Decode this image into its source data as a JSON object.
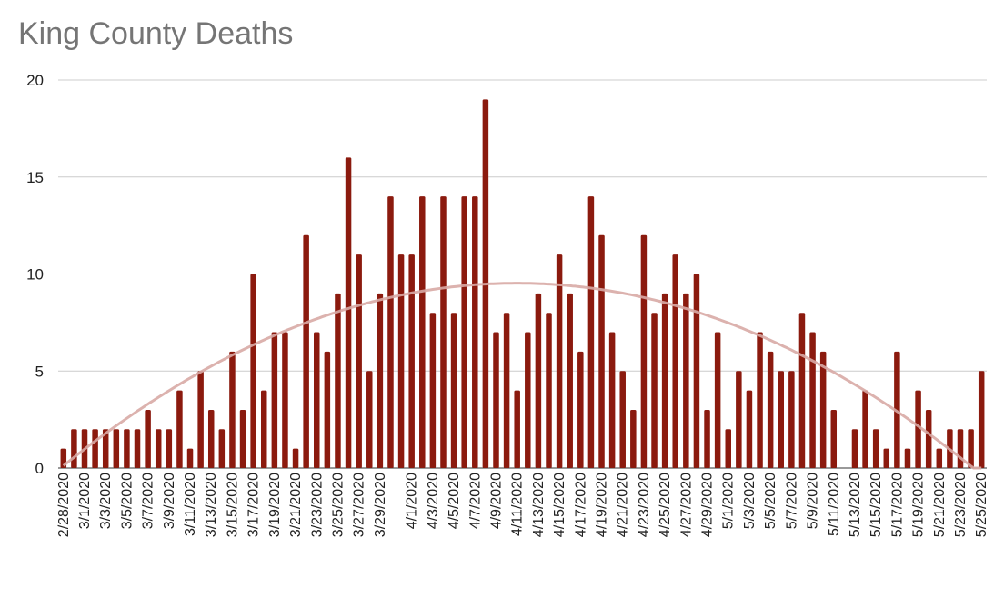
{
  "title": "King County Deaths",
  "colors": {
    "bar": "#8b1a0e",
    "trendline": "#d8aaa5",
    "gridline": "#cccccc",
    "title": "#757575"
  },
  "chart_data": {
    "type": "bar",
    "title": "King County Deaths",
    "xlabel": "",
    "ylabel": "",
    "ylim": [
      0,
      20
    ],
    "yticks": [
      0,
      5,
      10,
      15,
      20
    ],
    "grid": true,
    "trendline": "polynomial",
    "categories": [
      "2/28/2020",
      "2/29/2020",
      "3/1/2020",
      "3/2/2020",
      "3/3/2020",
      "3/4/2020",
      "3/5/2020",
      "3/6/2020",
      "3/7/2020",
      "3/8/2020",
      "3/9/2020",
      "3/10/2020",
      "3/11/2020",
      "3/12/2020",
      "3/13/2020",
      "3/14/2020",
      "3/15/2020",
      "3/16/2020",
      "3/17/2020",
      "3/18/2020",
      "3/19/2020",
      "3/20/2020",
      "3/21/2020",
      "3/22/2020",
      "3/23/2020",
      "3/24/2020",
      "3/25/2020",
      "3/26/2020",
      "3/27/2020",
      "3/28/2020",
      "3/29/2020",
      "3/30/2020",
      "3/31/2020",
      "4/1/2020",
      "4/2/2020",
      "4/3/2020",
      "4/4/2020",
      "4/5/2020",
      "4/6/2020",
      "4/7/2020",
      "4/8/2020",
      "4/9/2020",
      "4/10/2020",
      "4/11/2020",
      "4/12/2020",
      "4/13/2020",
      "4/14/2020",
      "4/15/2020",
      "4/16/2020",
      "4/17/2020",
      "4/18/2020",
      "4/19/2020",
      "4/20/2020",
      "4/21/2020",
      "4/22/2020",
      "4/23/2020",
      "4/24/2020",
      "4/25/2020",
      "4/26/2020",
      "4/27/2020",
      "4/28/2020",
      "4/29/2020",
      "4/30/2020",
      "5/1/2020",
      "5/2/2020",
      "5/3/2020",
      "5/4/2020",
      "5/5/2020",
      "5/6/2020",
      "5/7/2020",
      "5/8/2020",
      "5/9/2020",
      "5/10/2020",
      "5/11/2020",
      "5/12/2020",
      "5/13/2020",
      "5/14/2020",
      "5/15/2020",
      "5/16/2020",
      "5/17/2020",
      "5/18/2020",
      "5/19/2020",
      "5/20/2020",
      "5/21/2020",
      "5/22/2020",
      "5/23/2020",
      "5/24/2020",
      "5/25/2020"
    ],
    "tick_labels": [
      "2/28/2020",
      "3/1/2020",
      "3/3/2020",
      "3/5/2020",
      "3/7/2020",
      "3/9/2020",
      "3/11/2020",
      "3/13/2020",
      "3/15/2020",
      "3/17/2020",
      "3/19/2020",
      "3/21/2020",
      "3/23/2020",
      "3/25/2020",
      "3/27/2020",
      "3/29/2020",
      "4/1/2020",
      "4/3/2020",
      "4/5/2020",
      "4/7/2020",
      "4/9/2020",
      "4/11/2020",
      "4/13/2020",
      "4/15/2020",
      "4/17/2020",
      "4/19/2020",
      "4/21/2020",
      "4/23/2020",
      "4/25/2020",
      "4/27/2020",
      "4/29/2020",
      "5/1/2020",
      "5/3/2020",
      "5/5/2020",
      "5/7/2020",
      "5/9/2020",
      "5/11/2020",
      "5/13/2020",
      "5/15/2020",
      "5/17/2020",
      "5/19/2020",
      "5/21/2020",
      "5/23/2020",
      "5/25/2020"
    ],
    "values": [
      1,
      2,
      2,
      2,
      2,
      2,
      2,
      2,
      3,
      2,
      2,
      4,
      1,
      5,
      3,
      2,
      6,
      3,
      10,
      4,
      7,
      7,
      1,
      12,
      7,
      6,
      9,
      16,
      11,
      5,
      9,
      14,
      11,
      11,
      14,
      8,
      14,
      8,
      14,
      14,
      19,
      7,
      8,
      4,
      7,
      9,
      8,
      11,
      9,
      6,
      14,
      12,
      7,
      5,
      3,
      12,
      8,
      9,
      11,
      9,
      10,
      3,
      7,
      2,
      5,
      4,
      7,
      6,
      5,
      5,
      8,
      7,
      6,
      3,
      0,
      2,
      4,
      2,
      1,
      6,
      1,
      4,
      3,
      1,
      2,
      2,
      2,
      5
    ]
  }
}
